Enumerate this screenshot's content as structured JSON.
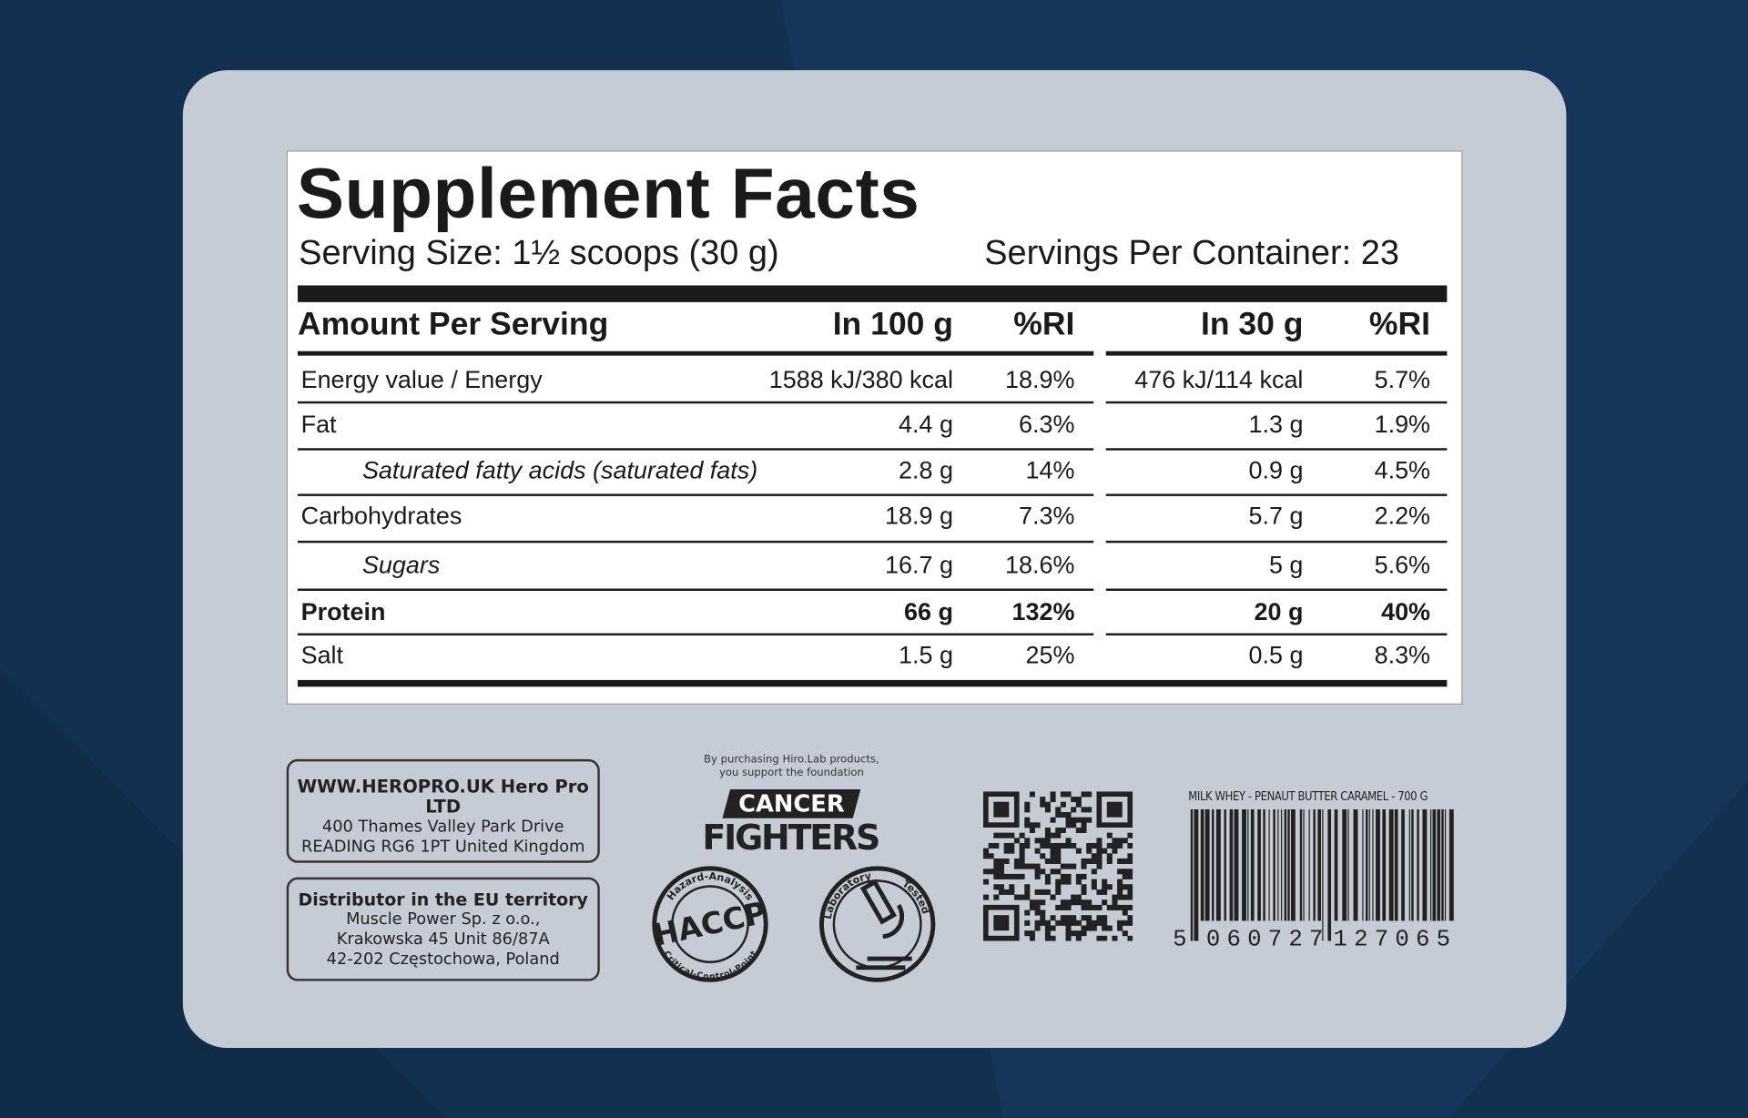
{
  "header": {
    "title": "Supplement Facts",
    "serving_size": "Serving Size: 1½ scoops (30 g)",
    "servings_per_container": "Servings Per Container: 23"
  },
  "table": {
    "headers": [
      "Amount Per Serving",
      "In 100 g",
      "%RI",
      "In 30 g",
      "%RI"
    ],
    "rows": [
      [
        "Energy value / Energy",
        "1588 kJ/380 kcal",
        "18.9%",
        "476 kJ/114 kcal",
        "5.7%"
      ],
      [
        "Fat",
        "4.4 g",
        "6.3%",
        "1.3 g",
        "1.9%"
      ],
      [
        "Saturated fatty acids (saturated fats)",
        "2.8 g",
        "14%",
        "0.9 g",
        "4.5%"
      ],
      [
        "Carbohydrates",
        "18.9 g",
        "7.3%",
        "5.7 g",
        "2.2%"
      ],
      [
        "Sugars",
        "16.7 g",
        "18.6%",
        "5 g",
        "5.6%"
      ],
      [
        "Protein",
        "66 g",
        "132%",
        "20 g",
        "40%"
      ],
      [
        "Salt",
        "1.5 g",
        "25%",
        "0.5 g",
        "8.3%"
      ]
    ]
  },
  "manufacturer": {
    "lines": [
      "WWW.HEROPRO.UK Hero Pro LTD",
      "400 Thames Valley Park Drive",
      "READING RG6 1PT United Kingdom"
    ]
  },
  "distributor": {
    "lines": [
      "Distributor in the EU territory",
      "Muscle Power Sp. z o.o.,",
      "Krakowska 45 Unit 86/87A",
      "42-202 Częstochowa, Poland"
    ]
  },
  "foundation": {
    "note": [
      "By purchasing Hiro.Lab products,",
      "you support the foundation"
    ],
    "name": [
      "CANCER",
      "FIGHTERS"
    ]
  },
  "badges": {
    "haccp": {
      "top": "Hazard-Analysis",
      "center": "HACCP",
      "bottom": "Critical-Control-Point"
    },
    "lab": {
      "left": "Laboratory",
      "right": "Tested"
    }
  },
  "barcode": {
    "label": "MILK WHEY - PENAUT BUTTER CARAMEL - 700 G",
    "digits": [
      "5",
      "060727",
      "127065"
    ]
  }
}
